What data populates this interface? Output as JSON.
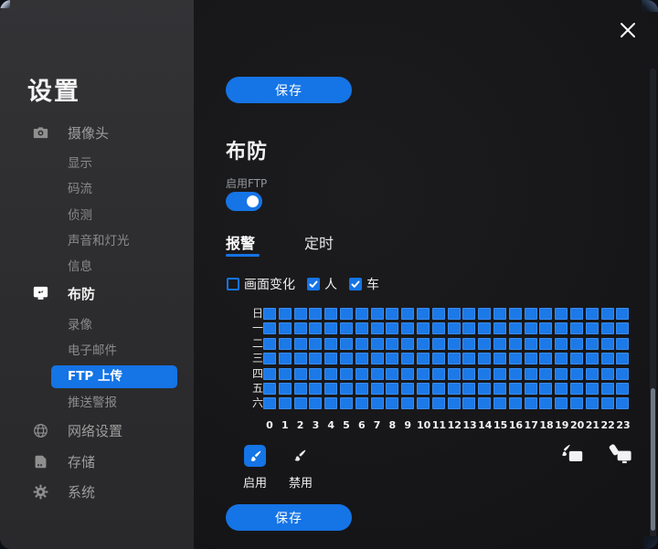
{
  "window": {
    "close": "close"
  },
  "sidebar": {
    "title": "设置",
    "items": [
      {
        "label": "摄像头",
        "icon": "camera-icon"
      },
      {
        "label": "显示"
      },
      {
        "label": "码流"
      },
      {
        "label": "侦测"
      },
      {
        "label": "声音和灯光"
      },
      {
        "label": "信息"
      },
      {
        "label": "布防",
        "icon": "arming-monitor-icon",
        "active": true
      },
      {
        "label": "录像"
      },
      {
        "label": "电子邮件"
      },
      {
        "label": "FTP 上传",
        "selected": true
      },
      {
        "label": "推送警报"
      },
      {
        "label": "网络设置",
        "icon": "globe-icon"
      },
      {
        "label": "存储",
        "icon": "sd-card-icon"
      },
      {
        "label": "系统",
        "icon": "gear-icon"
      }
    ]
  },
  "main": {
    "save_top": "保存",
    "save_bottom": "保存",
    "section_title": "布防",
    "ftp_toggle": {
      "label": "启用FTP",
      "state": "on"
    },
    "tabs": [
      {
        "label": "报警",
        "active": true
      },
      {
        "label": "定时",
        "active": false
      }
    ],
    "filters": [
      {
        "label": "画面变化",
        "checked": false
      },
      {
        "label": "人",
        "checked": true
      },
      {
        "label": "车",
        "checked": true
      }
    ],
    "tools": {
      "enable": "启用",
      "disable": "禁用"
    }
  },
  "schedule": {
    "day_labels": [
      "日",
      "一",
      "二",
      "三",
      "四",
      "五",
      "六"
    ],
    "hour_labels": [
      "0",
      "1",
      "2",
      "3",
      "4",
      "5",
      "6",
      "7",
      "8",
      "9",
      "10",
      "11",
      "12",
      "13",
      "14",
      "15",
      "16",
      "17",
      "18",
      "19",
      "20",
      "21",
      "22",
      "23"
    ],
    "all_selected": true
  },
  "colors": {
    "accent": "#1574e6",
    "cell_on": "#1c79e8"
  }
}
